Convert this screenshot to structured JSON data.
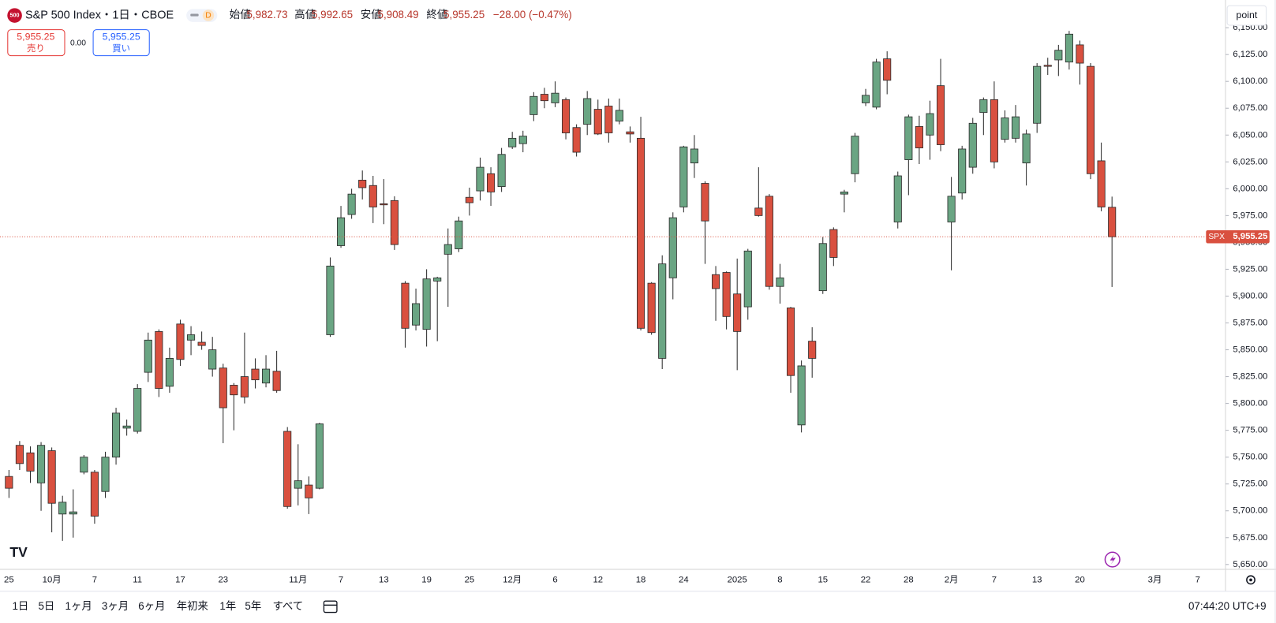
{
  "header": {
    "logo": "500",
    "title": "S&P 500 Index・1日・CBOE",
    "badge": "D",
    "ohlc": [
      {
        "label": "始値",
        "value": "5,982.73"
      },
      {
        "label": "高値",
        "value": "5,992.65"
      },
      {
        "label": "安値",
        "value": "5,908.49"
      },
      {
        "label": "終値",
        "value": "5,955.25"
      }
    ],
    "change": "−28.00 (−0.47%)"
  },
  "order": {
    "sell_price": "5,955.25",
    "sell": "売り",
    "spread": "0.00",
    "buy_price": "5,955.25",
    "buy": "買い"
  },
  "scale_mode": "point",
  "price_tag": {
    "symbol": "SPX",
    "price": "5,955.25"
  },
  "chart_data": {
    "type": "candlestick",
    "up_color": "#6aa583",
    "down_color": "#d9503f",
    "ylim": [
      5645.5,
      6175.8
    ],
    "yticks": [
      {
        "value": 5650,
        "label": "5,650.00"
      },
      {
        "value": 5675,
        "label": "5,675.00"
      },
      {
        "value": 5700,
        "label": "5,700.00"
      },
      {
        "value": 5725,
        "label": "5,725.00"
      },
      {
        "value": 5750,
        "label": "5,750.00"
      },
      {
        "value": 5775,
        "label": "5,775.00"
      },
      {
        "value": 5800,
        "label": "5,800.00"
      },
      {
        "value": 5825,
        "label": "5,825.00"
      },
      {
        "value": 5850,
        "label": "5,850.00"
      },
      {
        "value": 5875,
        "label": "5,875.00"
      },
      {
        "value": 5900,
        "label": "5,900.00"
      },
      {
        "value": 5925,
        "label": "5,925.00"
      },
      {
        "value": 5950,
        "label": "5,950.00"
      },
      {
        "value": 5975,
        "label": "5,975.00"
      },
      {
        "value": 6000,
        "label": "6,000.00"
      },
      {
        "value": 6025,
        "label": "6,025.00"
      },
      {
        "value": 6050,
        "label": "6,050.00"
      },
      {
        "value": 6075,
        "label": "6,075.00"
      },
      {
        "value": 6100,
        "label": "6,100.00"
      },
      {
        "value": 6125,
        "label": "6,125.00"
      },
      {
        "value": 6150,
        "label": "6,150.00"
      }
    ],
    "categories": [
      "25",
      null,
      null,
      null,
      "10月",
      null,
      null,
      null,
      "7",
      null,
      null,
      null,
      "11",
      null,
      null,
      null,
      "17",
      null,
      null,
      null,
      "23",
      null,
      null,
      null,
      null,
      null,
      null,
      "11月",
      null,
      null,
      null,
      "7",
      null,
      null,
      null,
      "13",
      null,
      null,
      null,
      "19",
      null,
      null,
      null,
      "25",
      null,
      null,
      null,
      "12月",
      null,
      null,
      null,
      "6",
      null,
      null,
      null,
      "12",
      null,
      null,
      null,
      "18",
      null,
      null,
      null,
      "24",
      null,
      null,
      null,
      null,
      "2025",
      null,
      null,
      null,
      "8",
      null,
      null,
      null,
      "15",
      null,
      null,
      null,
      "22",
      null,
      null,
      null,
      "28",
      null,
      null,
      null,
      "2月",
      null,
      null,
      null,
      "7",
      null,
      null,
      null,
      "13",
      null,
      null,
      null,
      "20",
      null,
      null,
      null,
      null,
      null,
      null,
      "3月",
      null,
      null,
      null,
      "7"
    ],
    "open": [
      5732,
      5761,
      5754,
      5726,
      5756,
      5697,
      5697,
      5736,
      5736,
      5718,
      5750,
      5777,
      5774,
      5829,
      5867,
      5816,
      5874,
      5859,
      5857,
      5832,
      5833,
      5817,
      5825,
      5832,
      5819,
      5830,
      5774,
      5721,
      5724,
      5721,
      5864,
      5947,
      5976,
      6008,
      6003,
      5986,
      5989,
      5912,
      5873,
      5869,
      5914,
      5939,
      5944,
      5992,
      5998,
      6014,
      6002,
      6039,
      6042,
      6069,
      6088,
      6080,
      6083,
      6057,
      6060,
      6074,
      6077,
      6063,
      6053,
      6047,
      5912,
      5842,
      5917,
      5983,
      6024,
      6005,
      5920,
      5922,
      5902,
      5890,
      5982,
      5993,
      5909,
      5889,
      5780,
      5858,
      5905,
      5962,
      5995,
      6014,
      6080,
      6076,
      6121,
      5969,
      6027,
      6058,
      6050,
      6096,
      5969,
      5996,
      6020,
      6071,
      6083,
      6046,
      6047,
      6024,
      6061,
      6115,
      6120,
      6118,
      6134,
      6114,
      6026,
      5982.73,
      null,
      null,
      null,
      null,
      null,
      null,
      null,
      null
    ],
    "high": [
      5738,
      5765,
      5760,
      5764,
      5759,
      5714,
      5720,
      5752,
      5738,
      5755,
      5796,
      5785,
      5818,
      5866,
      5869,
      5852,
      5878,
      5872,
      5867,
      5862,
      5837,
      5819,
      5866,
      5842,
      5845,
      5849,
      5778,
      5762,
      5732,
      5782,
      5936,
      5984,
      6000,
      6017,
      6012,
      6009,
      5993,
      5914,
      5907,
      5925,
      5918,
      5963,
      5974,
      6001,
      6029,
      6020,
      6038,
      6053,
      6054,
      6090,
      6094,
      6100,
      6085,
      6060,
      6091,
      6083,
      6084,
      6084,
      6058,
      6067,
      5913,
      5938,
      5978,
      6040,
      6050,
      6007,
      5928,
      5923,
      5935,
      5944,
      6020,
      5995,
      5930,
      5890,
      5840,
      5871,
      5955,
      5964,
      5999,
      6052,
      6093,
      6121,
      6128,
      6016,
      6069,
      6068,
      6082,
      6121,
      6011,
      6040,
      6066,
      6085,
      6100,
      6073,
      6078,
      6055,
      6117,
      6122,
      6134,
      6147,
      6138,
      6117,
      6043,
      5992.65,
      null,
      null,
      null,
      null,
      null,
      null,
      null,
      null
    ],
    "low": [
      5712,
      5738,
      5726,
      5700,
      5680,
      5672,
      5675,
      5734,
      5688,
      5712,
      5743,
      5770,
      5772,
      5820,
      5806,
      5810,
      5835,
      5845,
      5850,
      5825,
      5763,
      5775,
      5800,
      5814,
      5815,
      5810,
      5702,
      5705,
      5697,
      5720,
      5862,
      5945,
      5972,
      5990,
      5968,
      5967,
      5943,
      5852,
      5868,
      5853,
      5858,
      5890,
      5941,
      5975,
      5989,
      5984,
      5997,
      6037,
      6034,
      6063,
      6075,
      6076,
      6046,
      6030,
      6050,
      6050,
      6043,
      6060,
      6043,
      5868,
      5864,
      5832,
      5897,
      5978,
      6010,
      5930,
      5877,
      5869,
      5831,
      5878,
      5974,
      5906,
      5893,
      5810,
      5773,
      5824,
      5902,
      5928,
      5978,
      6006,
      6077,
      6074,
      6088,
      5963,
      5994,
      6023,
      6027,
      6035,
      5924,
      5990,
      6014,
      6050,
      6019,
      6043,
      6043,
      6003,
      6052,
      6106,
      6105,
      6111,
      6097,
      6009,
      5979,
      5908.49,
      null,
      null,
      null,
      null,
      null,
      null,
      null,
      null
    ],
    "close": [
      5721,
      5744,
      5737,
      5761,
      5707,
      5708,
      5699,
      5750,
      5695,
      5750,
      5791,
      5779,
      5814,
      5859,
      5814,
      5842,
      5841,
      5864,
      5854,
      5850,
      5796,
      5808,
      5806,
      5822,
      5832,
      5812,
      5704,
      5728,
      5712,
      5781,
      5928,
      5973,
      5995,
      6001,
      5983,
      5985,
      5948,
      5870,
      5893,
      5916,
      5917,
      5948,
      5970,
      5987,
      6020,
      5997,
      6032,
      6047,
      6049,
      6086,
      6082,
      6089,
      6052,
      6034,
      6084,
      6051,
      6052,
      6073,
      6051,
      5870,
      5866,
      5930,
      5973,
      6039,
      6037,
      5970,
      5907,
      5881,
      5867,
      5942,
      5975,
      5909,
      5917,
      5826,
      5835,
      5842,
      5949,
      5936,
      5997,
      6049,
      6087,
      6118,
      6101,
      6012,
      6067,
      6038,
      6070,
      6041,
      5993,
      6037,
      6061,
      6083,
      6025,
      6066,
      6067,
      6051,
      6114,
      6114,
      6129,
      6144,
      6117,
      6014,
      5983,
      5955.25,
      null,
      null,
      null,
      null,
      null,
      null,
      null,
      null
    ]
  },
  "toolbar": {
    "periods": [
      "1日",
      "5日",
      "1ヶ月",
      "3ヶ月",
      "6ヶ月",
      "年初来",
      "1年",
      "5年",
      "すべて"
    ],
    "time": "07:44:20 UTC+9"
  }
}
